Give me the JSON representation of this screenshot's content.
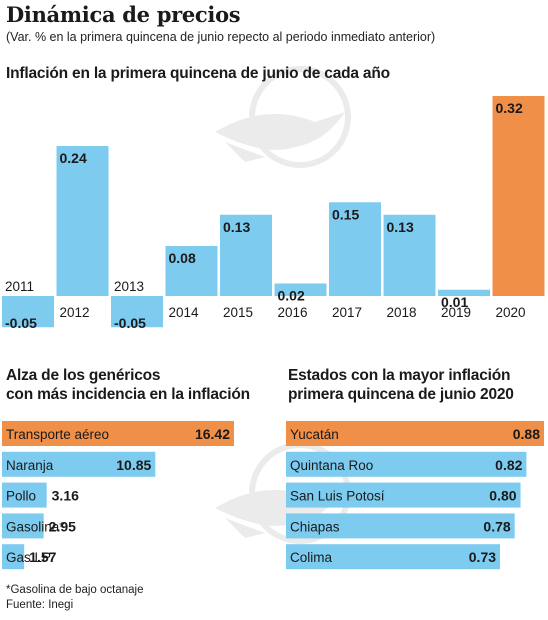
{
  "header": {
    "title": "Dinámica de precios",
    "subtitle": "(Var. % en la primera quincena de junio repecto al periodo inmediato anterior)"
  },
  "colors": {
    "bar": "#7ecbf0",
    "highlight": "#f08f48",
    "text": "#1a1a1a"
  },
  "chart_data": [
    {
      "type": "bar",
      "title": "Inflación en la primera quincena de junio de cada año",
      "categories": [
        "2011",
        "2012",
        "2013",
        "2014",
        "2015",
        "2016",
        "2017",
        "2018",
        "2019",
        "2020"
      ],
      "values": [
        -0.05,
        0.24,
        -0.05,
        0.08,
        0.13,
        0.02,
        0.15,
        0.13,
        0.01,
        0.32
      ],
      "value_labels": [
        "-0.05",
        "0.24",
        "-0.05",
        "0.08",
        "0.13",
        "0.02",
        "0.15",
        "0.13",
        "0.01",
        "0.32"
      ],
      "highlight_index": 9,
      "ylim": [
        -0.05,
        0.32
      ],
      "grid": false,
      "legend": "none"
    },
    {
      "type": "bar",
      "orientation": "horizontal",
      "title": "Alza de los genéricos con más incidencia en la inflación",
      "title_lines": [
        "Alza de los genéricos",
        "con más incidencia en la inflación"
      ],
      "categories": [
        "Transporte aéreo",
        "Naranja",
        "Pollo",
        "Gasolina*",
        "Gas LP"
      ],
      "values": [
        16.42,
        10.85,
        3.16,
        2.95,
        1.57
      ],
      "value_labels": [
        "16.42",
        "10.85",
        "3.16",
        "2.95",
        "1.57"
      ],
      "highlight_index": 0,
      "xlim": [
        0,
        16.42
      ]
    },
    {
      "type": "bar",
      "orientation": "horizontal",
      "title": "Estados con la mayor inflación primera quincena de junio 2020",
      "title_lines": [
        "Estados con la mayor inflación",
        "primera quincena de junio 2020"
      ],
      "categories": [
        "Yucatán",
        "Quintana Roo",
        "San Luis Potosí",
        "Chiapas",
        "Colima"
      ],
      "values": [
        0.88,
        0.82,
        0.8,
        0.78,
        0.73
      ],
      "value_labels": [
        "0.88",
        "0.82",
        "0.80",
        "0.78",
        "0.73"
      ],
      "highlight_index": 0,
      "xlim": [
        0,
        0.88
      ]
    }
  ],
  "footnotes": {
    "note": "*Gasolina de bajo octanaje",
    "source": "Fuente: Inegi"
  }
}
